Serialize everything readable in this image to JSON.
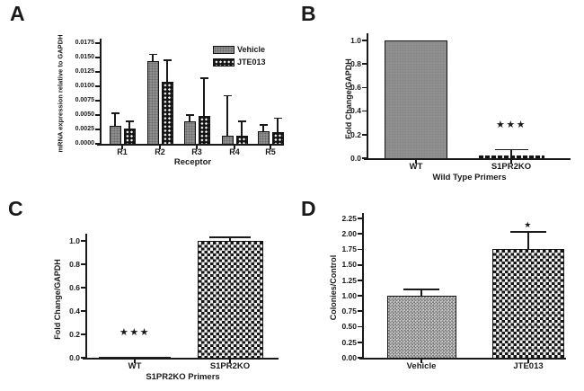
{
  "chart_data": [
    {
      "panel": "A",
      "type": "bar",
      "title": "",
      "ylabel": "mRNA expression relative to GAPDH",
      "xlabel": "Receptor",
      "ylim": [
        0,
        0.0175
      ],
      "ytick_step": 0.0025,
      "ytick_labels": [
        "0.0000",
        "0.0025",
        "0.0050",
        "0.0075",
        "0.0100",
        "0.0125",
        "0.0150",
        "0.0175"
      ],
      "categories": [
        "R1",
        "R2",
        "R3",
        "R4",
        "R5"
      ],
      "series": [
        {
          "name": "Vehicle",
          "pattern": "gray-stipple",
          "values": [
            0.0031,
            0.0143,
            0.0039,
            0.0014,
            0.0022
          ],
          "errors": [
            0.0023,
            0.0014,
            0.0012,
            0.0071,
            0.0012
          ]
        },
        {
          "name": "JTE013",
          "pattern": "black-dots",
          "values": [
            0.0026,
            0.0108,
            0.0048,
            0.0014,
            0.002
          ],
          "errors": [
            0.0014,
            0.0039,
            0.0067,
            0.0026,
            0.0026
          ]
        }
      ],
      "legend": [
        {
          "label": "Vehicle",
          "pattern": "gray-stipple"
        },
        {
          "label": "JTE013",
          "pattern": "black-dots"
        }
      ],
      "legend_position": "top-right",
      "grid": false
    },
    {
      "panel": "B",
      "type": "bar",
      "title": "",
      "ylabel": "Fold Change/GAPDH",
      "xlabel": "Wild Type Primers",
      "ylim": [
        0,
        1.0
      ],
      "ytick_step": 0.2,
      "ytick_labels": [
        "0.0",
        "0.2",
        "0.4",
        "0.6",
        "0.8",
        "1.0"
      ],
      "categories": [
        "WT",
        "S1PR2KO"
      ],
      "series": [
        {
          "name": "",
          "patterns": [
            "solid-gray",
            "black-dash"
          ],
          "values": [
            1.0,
            0.02
          ],
          "errors": [
            0,
            0.06
          ]
        }
      ],
      "annotations": [
        {
          "category": "S1PR2KO",
          "stars": "***",
          "y": 0.24
        }
      ],
      "grid": false
    },
    {
      "panel": "C",
      "type": "bar",
      "title": "",
      "ylabel": "Fold Change/GAPDH",
      "xlabel": "S1PR2KO Primers",
      "ylim": [
        0,
        1.0
      ],
      "ytick_step": 0.2,
      "ytick_labels": [
        "0.0",
        "0.2",
        "0.4",
        "0.6",
        "0.8",
        "1.0"
      ],
      "categories": [
        "WT",
        "S1PR2KO"
      ],
      "series": [
        {
          "name": "",
          "patterns": [
            "solid-dark",
            "checker"
          ],
          "values": [
            0.01,
            1.0
          ],
          "errors": [
            0,
            0.04
          ]
        }
      ],
      "annotations": [
        {
          "category": "WT",
          "stars": "***",
          "y": 0.17
        }
      ],
      "grid": false
    },
    {
      "panel": "D",
      "type": "bar",
      "title": "",
      "ylabel": "Colonies/Control",
      "xlabel": "",
      "ylim": [
        0,
        2.25
      ],
      "ytick_step": 0.25,
      "ytick_labels": [
        "0.00",
        "0.25",
        "0.50",
        "0.75",
        "1.00",
        "1.25",
        "1.50",
        "1.75",
        "2.00",
        "2.25"
      ],
      "categories": [
        "Vehicle",
        "JTE013"
      ],
      "series": [
        {
          "name": "",
          "patterns": [
            "fine-checker",
            "checker"
          ],
          "values": [
            1.0,
            1.76
          ],
          "errors": [
            0.12,
            0.28
          ]
        }
      ],
      "annotations": [
        {
          "category": "JTE013",
          "stars": "*",
          "y": 2.08
        }
      ],
      "grid": false
    }
  ]
}
